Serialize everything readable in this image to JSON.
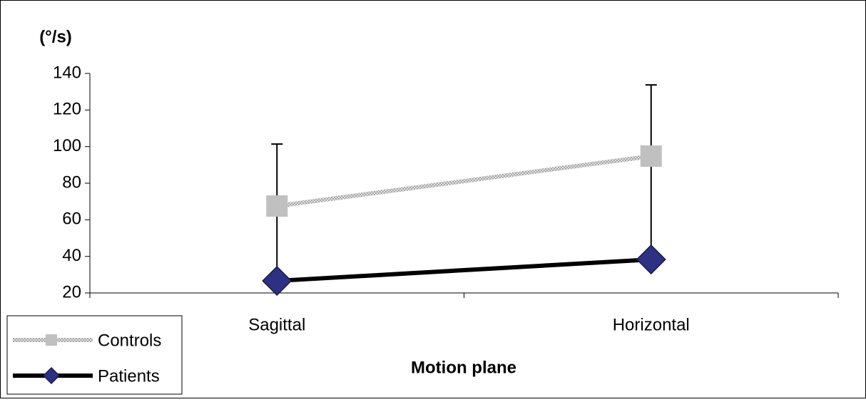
{
  "chart_data": {
    "type": "line",
    "y_label": "(°/s)",
    "x_label": "Motion plane",
    "categories": [
      "Sagittal",
      "Horizontal"
    ],
    "series": [
      {
        "name": "Controls",
        "color": "#c0c0c0",
        "values": [
          67.5,
          94.8
        ]
      },
      {
        "name": "Patients",
        "color": "#2e3182",
        "line_color": "#000000",
        "values": [
          26.6,
          38.3
        ],
        "errors": [
          74.8,
          95.4
        ]
      }
    ],
    "ylim": [
      20,
      140
    ],
    "yticks": [
      20,
      40,
      60,
      80,
      100,
      120,
      140
    ]
  }
}
